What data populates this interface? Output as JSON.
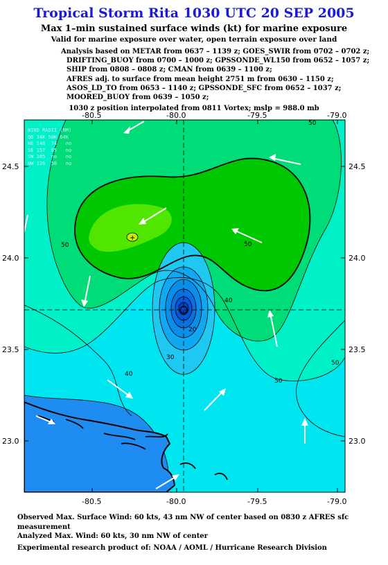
{
  "header": {
    "title": "Tropical Storm Rita 1030 UTC 20 SEP 2005",
    "subtitle": "Max 1–min sustained surface winds (kt) for marine exposure",
    "subtitle2": "Valid for marine exposure over water, open terrain exposure over land"
  },
  "analysis_lines": [
    "Analysis based on  METAR from 0637 – 1139 z;  GOES_SWIR from 0702 – 0702 z;",
    "DRIFTING_BUOY from 0700 – 1000 z;  GPSSONDE_WL150 from 0652 – 1057 z;",
    "SHIP from 0808 – 0808 z;  CMAN from 0639 – 1100 z;",
    "AFRES adj. to surface from mean height 2751 m from 0630 – 1150 z;",
    "ASOS_LD_TO from 0653 – 1140 z;  GPSSONDE_SFC from 0652 – 1037 z;",
    "MOORED_BUOY from 0639 – 1050 z;"
  ],
  "position_note": "1030 z position interpolated from 0811 Vortex; mslp = 988.0 mb",
  "map": {
    "lon_ticks": [
      "-80.5",
      "-80.0",
      "-79.5",
      "-79.0"
    ],
    "lat_ticks": [
      "24.5",
      "24.0",
      "23.5",
      "23.0"
    ],
    "contour_labels": [
      "50",
      "50",
      "50",
      "50",
      "40",
      "40",
      "30",
      "20",
      "50"
    ],
    "center_lon": -80.05,
    "center_lat": 23.72,
    "colors": {
      "ocean_deep": "#1e8cf0",
      "cyan": "#00e6f0",
      "aqua": "#00f0c8",
      "green_light": "#00dc78",
      "green": "#00c800",
      "green_bright": "#50e600",
      "land": "#000000",
      "arrow": "#ffffff"
    }
  },
  "wind_radii": {
    "header": "WIND RADII (NM)",
    "columns": "QD 34K 50K 64K",
    "rows": [
      "NE 148  74   no",
      "SE 157  65   no",
      "SW 105  no   no",
      "NW 126  56   no"
    ]
  },
  "footer": {
    "observed": "Observed Max. Surface Wind: 60 kts, 43 nm NW of center based on 0830 z AFRES sfc measurement",
    "analyzed": "Analyzed Max. Wind: 60 kts, 30 nm NW of center",
    "credit": "Experimental research product of:  NOAA / AOML / Hurricane Research Division"
  }
}
